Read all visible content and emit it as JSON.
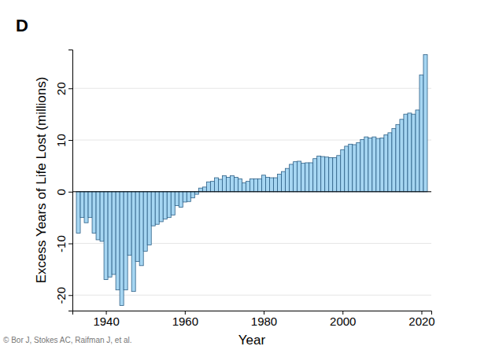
{
  "chart_data": {
    "type": "bar",
    "title": "D",
    "x_label": "Year",
    "y_label": "Excess Years of Life Lost (millions)",
    "annotations": [
      "© Bor J, Stokes AC, Raifman J, et al."
    ],
    "x": [
      1933,
      1934,
      1935,
      1936,
      1937,
      1938,
      1939,
      1940,
      1941,
      1942,
      1943,
      1944,
      1945,
      1946,
      1947,
      1948,
      1949,
      1950,
      1951,
      1952,
      1953,
      1954,
      1955,
      1956,
      1957,
      1958,
      1959,
      1960,
      1961,
      1962,
      1963,
      1964,
      1965,
      1966,
      1967,
      1968,
      1969,
      1970,
      1971,
      1972,
      1973,
      1974,
      1975,
      1976,
      1977,
      1978,
      1979,
      1980,
      1981,
      1982,
      1983,
      1984,
      1985,
      1986,
      1987,
      1988,
      1989,
      1990,
      1991,
      1992,
      1993,
      1994,
      1995,
      1996,
      1997,
      1998,
      1999,
      2000,
      2001,
      2002,
      2003,
      2004,
      2005,
      2006,
      2007,
      2008,
      2009,
      2010,
      2011,
      2012,
      2013,
      2014,
      2015,
      2016,
      2017,
      2018,
      2019,
      2020,
      2021
    ],
    "values": [
      -8,
      -5,
      -6,
      -5,
      -8,
      -9.3,
      -9.6,
      -17,
      -16.5,
      -16,
      -19,
      -22,
      -19,
      -12.3,
      -19.3,
      -13.5,
      -14.3,
      -11.5,
      -10.3,
      -6.6,
      -6.3,
      -5.8,
      -5.3,
      -5,
      -4.5,
      -2.7,
      -3,
      -2,
      -1.9,
      -1.2,
      -0.5,
      0.7,
      0.9,
      1.9,
      2,
      2.7,
      2.4,
      3.1,
      2.8,
      3.1,
      2.8,
      2.5,
      1.7,
      2,
      2.5,
      2.5,
      2.5,
      3.2,
      2.8,
      2.7,
      2.7,
      3.4,
      3.9,
      4.5,
      5.3,
      5.8,
      5.9,
      5.5,
      5.6,
      5.6,
      6.4,
      6.9,
      6.8,
      6.7,
      6.6,
      6.6,
      7,
      8.1,
      8.8,
      9.2,
      9.1,
      9.5,
      10.1,
      10.6,
      10.4,
      10.6,
      10.3,
      10.4,
      11,
      11.4,
      12.2,
      13,
      14,
      15,
      15.2,
      15,
      15.8,
      22.6,
      26.5
    ],
    "color": "#a6d6f2",
    "xlim": [
      1931.5,
      2022.5
    ],
    "xticks": [
      1940,
      1960,
      1980,
      2000,
      2020
    ],
    "ylim": [
      -23,
      27.5
    ],
    "yticks": [
      -20,
      -10,
      0,
      10,
      20
    ],
    "grid": true
  }
}
